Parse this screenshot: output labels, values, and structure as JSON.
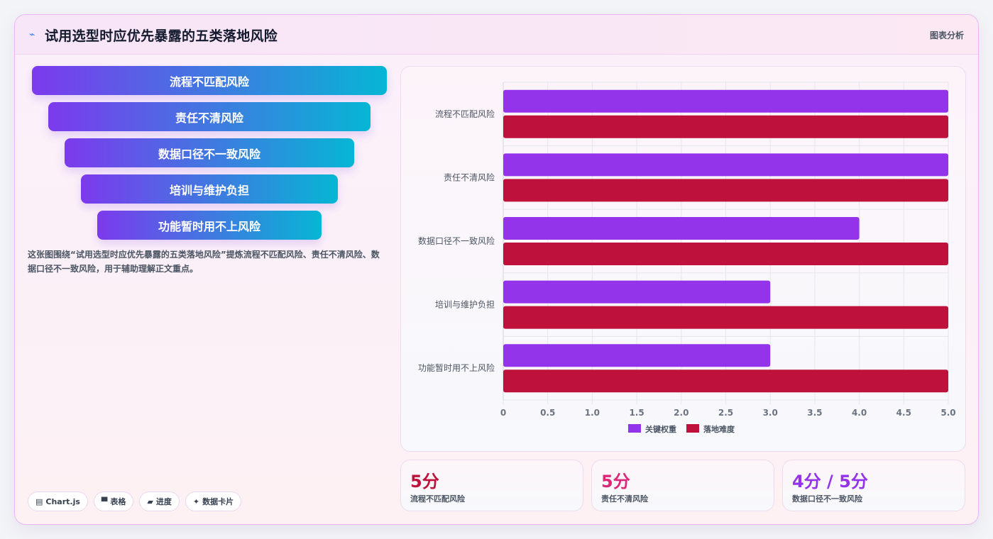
{
  "header": {
    "title": "试用选型时应优先暴露的五类落地风险",
    "tag": "图表分析"
  },
  "funnel": [
    "流程不匹配风险",
    "责任不清风险",
    "数据口径不一致风险",
    "培训与维护负担",
    "功能暂时用不上风险"
  ],
  "description": "这张图围绕“试用选型时应优先暴露的五类落地风险”提炼流程不匹配风险、责任不清风险、数据口径不一致风险，用于辅助理解正文重点。",
  "chips": [
    {
      "icon": "chart-icon",
      "glyph": "▤",
      "label": "Chart.js"
    },
    {
      "icon": "table-icon",
      "glyph": "▀",
      "label": "表格"
    },
    {
      "icon": "folder-icon",
      "glyph": "▰",
      "label": "进度"
    },
    {
      "icon": "sparkle-icon",
      "glyph": "✦",
      "label": "数据卡片"
    }
  ],
  "chart_data": {
    "type": "bar",
    "orientation": "horizontal",
    "categories": [
      "流程不匹配风险",
      "责任不清风险",
      "数据口径不一致风险",
      "培训与维护负担",
      "功能暂时用不上风险"
    ],
    "series": [
      {
        "name": "关键权重",
        "values": [
          5,
          5,
          4,
          3,
          3
        ],
        "color": "#9333ea"
      },
      {
        "name": "落地难度",
        "values": [
          5,
          5,
          5,
          5,
          5
        ],
        "color": "#be123c"
      }
    ],
    "xlim": [
      0,
      5
    ],
    "xticks": [
      "0",
      "0.5",
      "1.0",
      "1.5",
      "2.0",
      "2.5",
      "3.0",
      "3.5",
      "4.0",
      "4.5",
      "5.0"
    ],
    "grid": true,
    "legend": "bottom"
  },
  "stats": [
    {
      "value": "5分",
      "label": "流程不匹配风险",
      "color": "#be123c"
    },
    {
      "value": "5分",
      "label": "责任不清风险",
      "color": "#db2777"
    },
    {
      "value": "4分 / 5分",
      "label": "数据口径不一致风险",
      "color": "#9333ea"
    }
  ]
}
